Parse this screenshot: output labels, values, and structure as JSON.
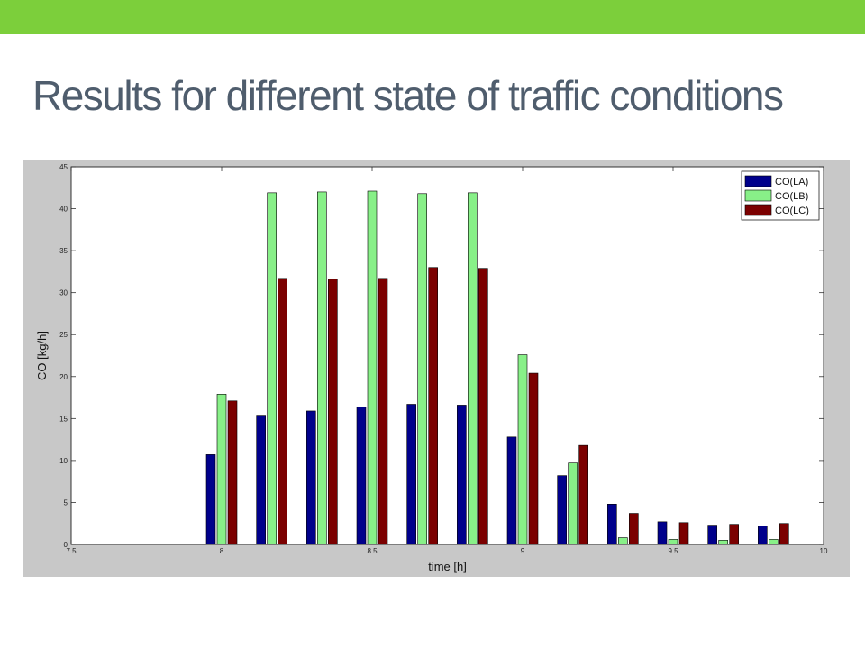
{
  "slide": {
    "title": "Results for different state of traffic conditions",
    "accent_color": "#7ccf3b",
    "title_color": "#4f5d6d"
  },
  "chart_data": {
    "type": "bar",
    "xlabel": "time [h]",
    "ylabel": "CO [kg/h]",
    "xlim": [
      7.5,
      10
    ],
    "ylim": [
      0,
      45
    ],
    "xticks": [
      7.5,
      8,
      8.5,
      9,
      9.5,
      10
    ],
    "xtick_labels": [
      "7.5",
      "8",
      "8.5",
      "9",
      "9.5",
      "10"
    ],
    "yticks": [
      0,
      5,
      10,
      15,
      20,
      25,
      30,
      35,
      40,
      45
    ],
    "ytick_labels": [
      "0",
      "5",
      "10",
      "15",
      "20",
      "25",
      "30",
      "35",
      "40",
      "45"
    ],
    "legend_position": "top-right",
    "x": [
      8,
      8.1667,
      8.3333,
      8.5,
      8.6667,
      8.8333,
      9,
      9.1667,
      9.3333,
      9.5,
      9.6667,
      9.8333
    ],
    "series": [
      {
        "name": "CO(LA)",
        "color": "#00008b",
        "values": [
          10.7,
          15.4,
          15.9,
          16.4,
          16.7,
          16.6,
          12.8,
          8.2,
          4.8,
          2.7,
          2.3,
          2.2
        ]
      },
      {
        "name": "CO(LB)",
        "color": "#88f088",
        "values": [
          17.9,
          41.9,
          42.0,
          42.1,
          41.8,
          41.9,
          22.6,
          9.7,
          0.8,
          0.6,
          0.5,
          0.6
        ]
      },
      {
        "name": "CO(LC)",
        "color": "#7b0000",
        "values": [
          17.1,
          31.7,
          31.6,
          31.7,
          33.0,
          32.9,
          20.4,
          11.8,
          3.7,
          2.6,
          2.4,
          2.5
        ]
      }
    ]
  }
}
